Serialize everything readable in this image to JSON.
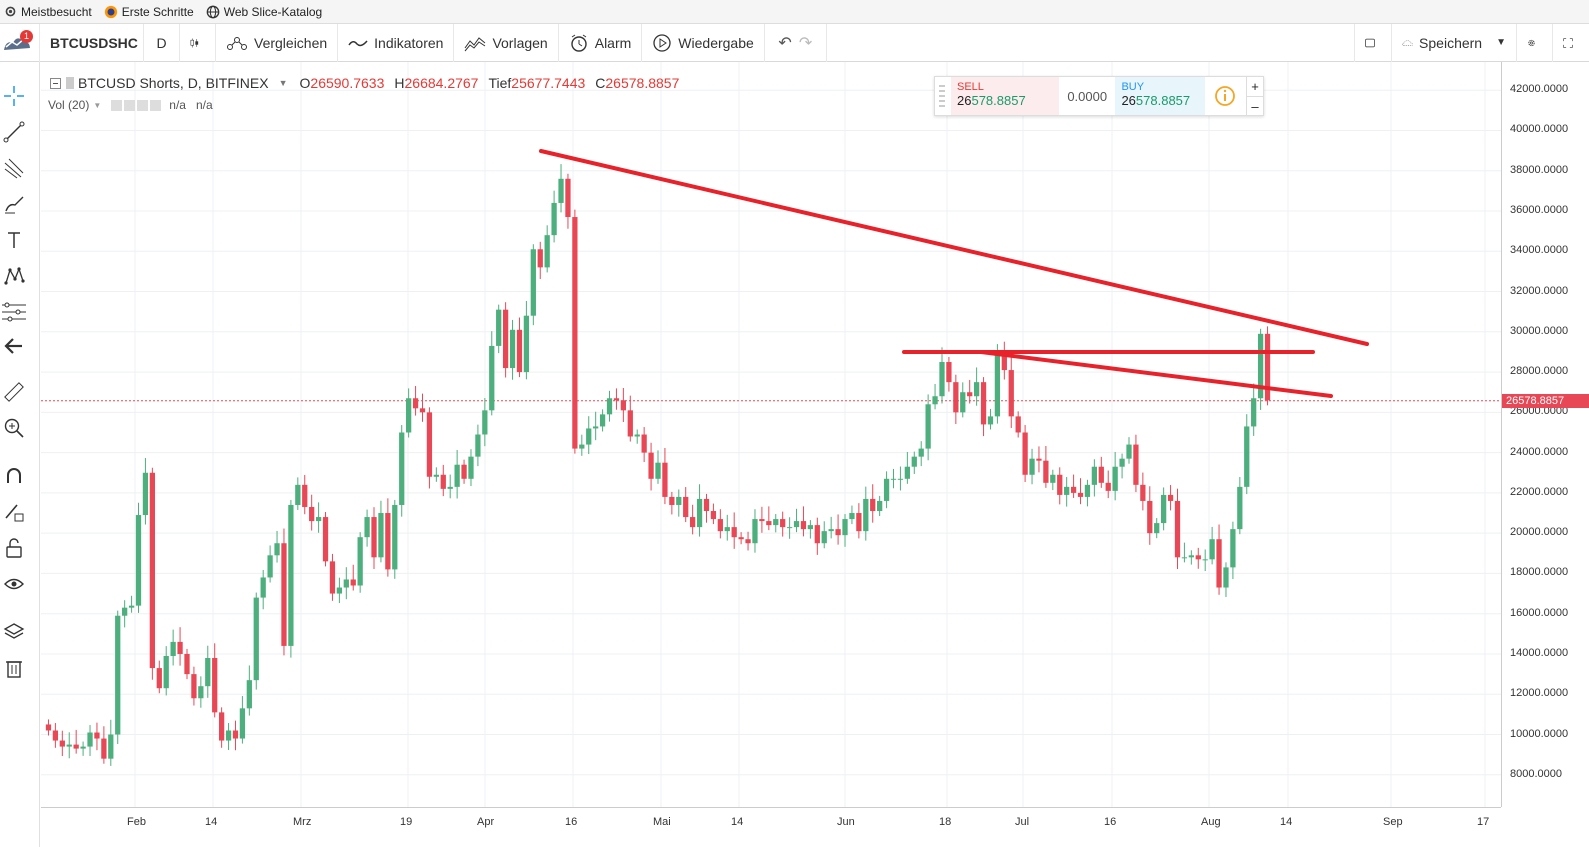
{
  "bookmarks": [
    {
      "label": "Meistbesucht",
      "icon": "gear-icon"
    },
    {
      "label": "Erste Schritte",
      "icon": "firefox-icon"
    },
    {
      "label": "Web Slice-Katalog",
      "icon": "globe-icon"
    }
  ],
  "toolbar": {
    "notification_count": "1",
    "symbol": "BTCUSDSHC",
    "interval": "D",
    "compare": "Vergleichen",
    "indicators": "Indikatoren",
    "templates": "Vorlagen",
    "alarm": "Alarm",
    "replay": "Wiedergabe",
    "save": "Speichern"
  },
  "legend": {
    "title": "BTCUSD Shorts, D, BITFINEX",
    "o_key": "O",
    "o_val": "26590.7633",
    "h_key": "H",
    "h_val": "26684.2767",
    "l_key": "Tief",
    "l_val": "25677.7443",
    "c_key": "C",
    "c_val": "26578.8857",
    "vol_label": "Vol (20)",
    "vol_val1": "n/a",
    "vol_val2": "n/a"
  },
  "trade": {
    "sell_label": "SELL",
    "sell_big": "26",
    "sell_small": "578.8857",
    "spread": "0.0000",
    "buy_label": "BUY",
    "buy_big": "26",
    "buy_small": "578.8857"
  },
  "colors": {
    "up": "#4caf7d",
    "down": "#e84855",
    "trend": "#e8222a",
    "price_line": "#e84855"
  },
  "chart_data": {
    "type": "candlestick",
    "yticks": [
      "42000.0000",
      "40000.0000",
      "38000.0000",
      "36000.0000",
      "34000.0000",
      "32000.0000",
      "30000.0000",
      "28000.0000",
      "26000.0000",
      "24000.0000",
      "22000.0000",
      "20000.0000",
      "18000.0000",
      "16000.0000",
      "14000.0000",
      "12000.0000",
      "10000.0000",
      "8000.0000"
    ],
    "ylim": [
      6400,
      43400
    ],
    "last_price": "26578.8857",
    "xticks": [
      "Feb",
      "14",
      "Mrz",
      "19",
      "Apr",
      "16",
      "Mai",
      "14",
      "Jun",
      "18",
      "Jul",
      "16",
      "Aug",
      "14",
      "Sep",
      "17"
    ],
    "closes": [
      10200,
      9700,
      9400,
      9500,
      9300,
      9400,
      10100,
      9800,
      8800,
      10000,
      15900,
      16300,
      16400,
      20900,
      23000,
      13300,
      12300,
      13900,
      14600,
      14000,
      13000,
      11800,
      12400,
      13800,
      11100,
      9700,
      10200,
      9800,
      11300,
      12700,
      16800,
      17800,
      18900,
      19500,
      14400,
      21400,
      22400,
      21300,
      20600,
      20800,
      18600,
      17000,
      17300,
      17700,
      17400,
      19800,
      20800,
      18800,
      21000,
      18200,
      21400,
      25000,
      26700,
      26200,
      26000,
      22800,
      22900,
      22200,
      22300,
      23400,
      22700,
      23800,
      24900,
      26100,
      29300,
      31100,
      28200,
      30100,
      28000,
      30800,
      34100,
      33200,
      34800,
      36400,
      37600,
      35700,
      24200,
      24400,
      25200,
      25300,
      25900,
      26700,
      26600,
      26100,
      24800,
      24900,
      24000,
      22700,
      23500,
      21800,
      21400,
      21800,
      20800,
      20300,
      21700,
      21100,
      20700,
      20100,
      20300,
      19800,
      19700,
      19500,
      20700,
      20600,
      20400,
      20700,
      20300,
      20300,
      20600,
      20200,
      20400,
      19500,
      20100,
      20200,
      19900,
      20700,
      21000,
      20100,
      21700,
      21100,
      21600,
      22700,
      22700,
      22700,
      23300,
      23800,
      24200,
      26400,
      26800,
      28500,
      27500,
      26000,
      27000,
      26800,
      27500,
      25400,
      25800,
      28900,
      28100,
      25800,
      25000,
      22900,
      23700,
      23600,
      22500,
      22900,
      21900,
      22300,
      22000,
      21800,
      22400,
      23300,
      22500,
      22100,
      23300,
      23700,
      24400,
      22400,
      21600,
      20000,
      20500,
      21900,
      21600,
      18800,
      18800,
      18900,
      18700,
      18700,
      19700,
      17300,
      18300,
      20200,
      22300,
      25300,
      26700,
      29900,
      26600
    ]
  }
}
